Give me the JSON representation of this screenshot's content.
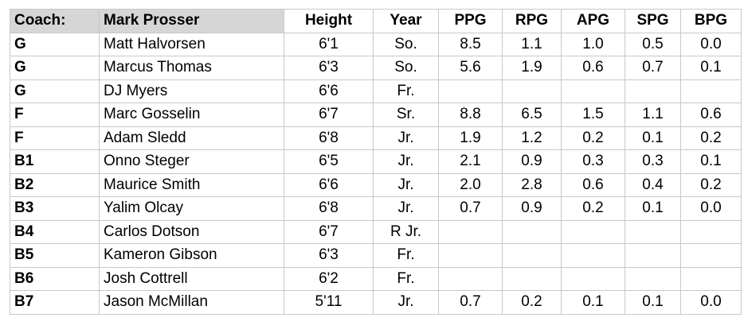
{
  "header": {
    "coach_label": "Coach:",
    "coach_name": "Mark Prosser",
    "columns": [
      "Height",
      "Year",
      "PPG",
      "RPG",
      "APG",
      "SPG",
      "BPG"
    ]
  },
  "rows": [
    {
      "pos": "G",
      "name": "Matt Halvorsen",
      "height": "6'1",
      "year": "So.",
      "ppg": "8.5",
      "rpg": "1.1",
      "apg": "1.0",
      "spg": "0.5",
      "bpg": "0.0"
    },
    {
      "pos": "G",
      "name": "Marcus Thomas",
      "height": "6'3",
      "year": "So.",
      "ppg": "5.6",
      "rpg": "1.9",
      "apg": "0.6",
      "spg": "0.7",
      "bpg": "0.1"
    },
    {
      "pos": "G",
      "name": "DJ Myers",
      "height": "6'6",
      "year": "Fr.",
      "ppg": "",
      "rpg": "",
      "apg": "",
      "spg": "",
      "bpg": ""
    },
    {
      "pos": "F",
      "name": "Marc Gosselin",
      "height": "6'7",
      "year": "Sr.",
      "ppg": "8.8",
      "rpg": "6.5",
      "apg": "1.5",
      "spg": "1.1",
      "bpg": "0.6"
    },
    {
      "pos": "F",
      "name": "Adam Sledd",
      "height": "6'8",
      "year": "Jr.",
      "ppg": "1.9",
      "rpg": "1.2",
      "apg": "0.2",
      "spg": "0.1",
      "bpg": "0.2"
    },
    {
      "pos": "B1",
      "name": "Onno Steger",
      "height": "6'5",
      "year": "Jr.",
      "ppg": "2.1",
      "rpg": "0.9",
      "apg": "0.3",
      "spg": "0.3",
      "bpg": "0.1"
    },
    {
      "pos": "B2",
      "name": "Maurice Smith",
      "height": "6'6",
      "year": "Jr.",
      "ppg": "2.0",
      "rpg": "2.8",
      "apg": "0.6",
      "spg": "0.4",
      "bpg": "0.2"
    },
    {
      "pos": "B3",
      "name": "Yalim Olcay",
      "height": "6'8",
      "year": "Jr.",
      "ppg": "0.7",
      "rpg": "0.9",
      "apg": "0.2",
      "spg": "0.1",
      "bpg": "0.0"
    },
    {
      "pos": "B4",
      "name": "Carlos Dotson",
      "height": "6'7",
      "year": "R Jr.",
      "ppg": "",
      "rpg": "",
      "apg": "",
      "spg": "",
      "bpg": ""
    },
    {
      "pos": "B5",
      "name": "Kameron Gibson",
      "height": "6'3",
      "year": "Fr.",
      "ppg": "",
      "rpg": "",
      "apg": "",
      "spg": "",
      "bpg": ""
    },
    {
      "pos": "B6",
      "name": "Josh Cottrell",
      "height": "6'2",
      "year": "Fr.",
      "ppg": "",
      "rpg": "",
      "apg": "",
      "spg": "",
      "bpg": ""
    },
    {
      "pos": "B7",
      "name": "Jason McMillan",
      "height": "5'11",
      "year": "Jr.",
      "ppg": "0.7",
      "rpg": "0.2",
      "apg": "0.1",
      "spg": "0.1",
      "bpg": "0.0"
    }
  ]
}
